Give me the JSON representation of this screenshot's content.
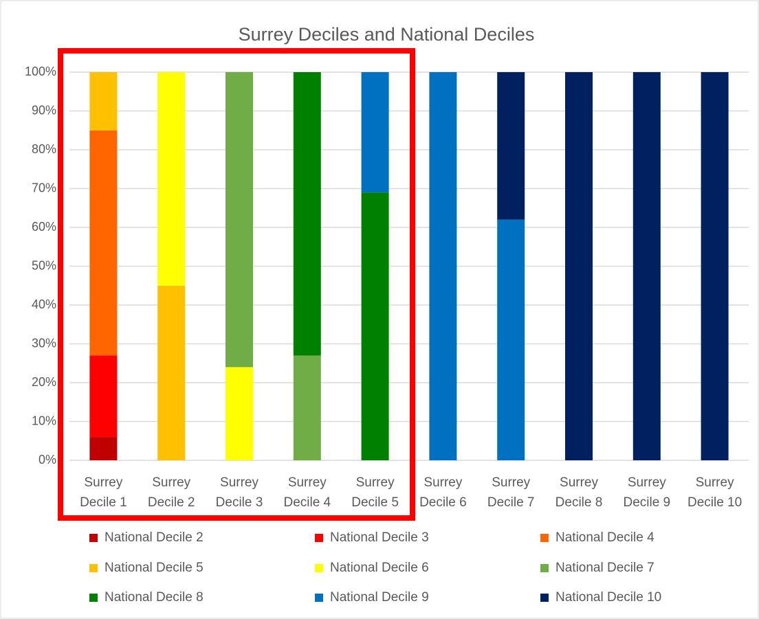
{
  "chart_data": {
    "type": "stacked_bar_100",
    "title": "Surrey Deciles and National Deciles",
    "categories": [
      "Surrey Decile 1",
      "Surrey Decile 2",
      "Surrey Decile 3",
      "Surrey Decile 4",
      "Surrey Decile 5",
      "Surrey Decile 6",
      "Surrey Decile 7",
      "Surrey Decile 8",
      "Surrey Decile 9",
      "Surrey Decile 10"
    ],
    "series": [
      {
        "name": "National Decile 2",
        "color": "#c00000",
        "values": [
          6,
          0,
          0,
          0,
          0,
          0,
          0,
          0,
          0,
          0
        ]
      },
      {
        "name": "National Decile 3",
        "color": "#ff0000",
        "values": [
          21,
          0,
          0,
          0,
          0,
          0,
          0,
          0,
          0,
          0
        ]
      },
      {
        "name": "National Decile 4",
        "color": "#ff6600",
        "values": [
          58,
          0,
          0,
          0,
          0,
          0,
          0,
          0,
          0,
          0
        ]
      },
      {
        "name": "National Decile 5",
        "color": "#ffc000",
        "values": [
          15,
          45,
          0,
          0,
          0,
          0,
          0,
          0,
          0,
          0
        ]
      },
      {
        "name": "National Decile 6",
        "color": "#ffff00",
        "values": [
          0,
          55,
          24,
          0,
          0,
          0,
          0,
          0,
          0,
          0
        ]
      },
      {
        "name": "National Decile 7",
        "color": "#70ad47",
        "values": [
          0,
          0,
          76,
          27,
          0,
          0,
          0,
          0,
          0,
          0
        ]
      },
      {
        "name": "National Decile 8",
        "color": "#008000",
        "values": [
          0,
          0,
          0,
          73,
          69,
          0,
          0,
          0,
          0,
          0
        ]
      },
      {
        "name": "National Decile 9",
        "color": "#0070c0",
        "values": [
          0,
          0,
          0,
          0,
          31,
          100,
          62,
          0,
          0,
          0
        ]
      },
      {
        "name": "National Decile 10",
        "color": "#002060",
        "values": [
          0,
          0,
          0,
          0,
          0,
          0,
          38,
          100,
          100,
          100
        ]
      }
    ],
    "ylim": [
      0,
      100
    ],
    "yticks": [
      {
        "value": 0,
        "label": "0%"
      },
      {
        "value": 10,
        "label": "10%"
      },
      {
        "value": 20,
        "label": "20%"
      },
      {
        "value": 30,
        "label": "30%"
      },
      {
        "value": 40,
        "label": "40%"
      },
      {
        "value": 50,
        "label": "50%"
      },
      {
        "value": 60,
        "label": "60%"
      },
      {
        "value": 70,
        "label": "70%"
      },
      {
        "value": 80,
        "label": "80%"
      },
      {
        "value": 90,
        "label": "90%"
      },
      {
        "value": 100,
        "label": "100%"
      }
    ],
    "grid": true,
    "legend": "bottom"
  }
}
